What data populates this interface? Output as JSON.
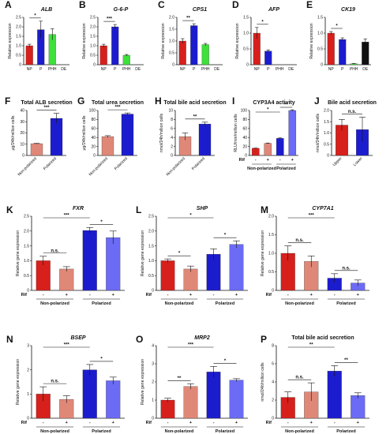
{
  "colors": {
    "red": "#d7201c",
    "blue": "#1c1ccf",
    "green": "#3ee03a",
    "black": "#111111",
    "pink": "#f2a0a8",
    "salmon": "#e08878",
    "cornflower": "#6b6bf5",
    "lightblue": "#a8b4f0",
    "highlight": "#f7b6c2"
  },
  "chart_data": [
    {
      "panel": "A",
      "type": "bar",
      "title": "ALB",
      "ylabel": "Relative expression",
      "ylim": [
        0,
        2.5
      ],
      "yticks": [
        "0",
        "0.5",
        "1.0",
        "1.5",
        "2.0",
        "2.5"
      ],
      "categories": [
        "NP",
        "P",
        "PHH",
        "DE"
      ],
      "values": [
        1.0,
        1.85,
        1.6,
        0.0
      ],
      "errors": [
        0.08,
        0.45,
        0.3,
        0
      ],
      "sig": [
        {
          "from": 0,
          "to": 1,
          "label": "*"
        }
      ]
    },
    {
      "panel": "B",
      "type": "bar",
      "title": "G-6-P",
      "ylabel": "Relative expression",
      "ylim": [
        0,
        2.5
      ],
      "yticks": [
        "0",
        "0.5",
        "1.0",
        "1.5",
        "2.0",
        "2.5"
      ],
      "categories": [
        "NP",
        "P",
        "PHH",
        "DE"
      ],
      "values": [
        1.0,
        2.0,
        0.5,
        0.0
      ],
      "errors": [
        0.08,
        0.12,
        0.04,
        0
      ],
      "sig": [
        {
          "from": 0,
          "to": 1,
          "label": "***"
        }
      ]
    },
    {
      "panel": "C",
      "type": "bar",
      "title": "CPS1",
      "ylabel": "Relative expression",
      "ylim": [
        0,
        2.0
      ],
      "yticks": [
        "0",
        "0.5",
        "1.0",
        "1.5",
        "2.0"
      ],
      "categories": [
        "NP",
        "P",
        "PHH",
        "DE"
      ],
      "values": [
        1.0,
        1.65,
        0.85,
        0.0
      ],
      "errors": [
        0.1,
        0.08,
        0.05,
        0
      ],
      "sig": [
        {
          "from": 0,
          "to": 1,
          "label": "**"
        }
      ]
    },
    {
      "panel": "D",
      "type": "bar",
      "title": "AFP",
      "ylabel": "Relative expression",
      "ylim": [
        0,
        1.5
      ],
      "yticks": [
        "0",
        "0.5",
        "1.0",
        "1.5"
      ],
      "categories": [
        "NP",
        "P",
        "PHH",
        "DE"
      ],
      "values": [
        1.0,
        0.43,
        0.0,
        0.0
      ],
      "errors": [
        0.18,
        0.04,
        0,
        0
      ],
      "sig": [
        {
          "from": 0,
          "to": 1,
          "label": "*"
        }
      ]
    },
    {
      "panel": "E",
      "type": "bar",
      "title": "CK19",
      "ylabel": "Relative expression",
      "ylim": [
        0,
        1.5
      ],
      "yticks": [
        "0",
        "0.5",
        "1.0",
        "1.5"
      ],
      "categories": [
        "NP",
        "P",
        "PHH",
        "DE"
      ],
      "values": [
        1.0,
        0.8,
        0.03,
        0.72
      ],
      "errors": [
        0.05,
        0.05,
        0.01,
        0.1
      ],
      "sig": [
        {
          "from": 0,
          "to": 1,
          "label": "*"
        }
      ]
    },
    {
      "panel": "F",
      "type": "bar",
      "title": "Total ALB secretion",
      "ylabel": "μg/24h/million cells",
      "ylim": [
        0,
        40
      ],
      "yticks": [
        "0",
        "10",
        "20",
        "30",
        "40"
      ],
      "categories": [
        "Non-polarized",
        "Polarized"
      ],
      "values": [
        10.5,
        33.0
      ],
      "errors": [
        0.3,
        4.5
      ],
      "sig": [
        {
          "from": 0,
          "to": 1,
          "label": "***"
        }
      ]
    },
    {
      "panel": "G",
      "type": "bar",
      "title": "Total urea secretion",
      "ylabel": "μg/24h/million cells",
      "ylim": [
        0,
        100
      ],
      "yticks": [
        "0",
        "20",
        "40",
        "60",
        "80",
        "100"
      ],
      "categories": [
        "Non-polarized",
        "Polarized"
      ],
      "values": [
        42.0,
        92.0
      ],
      "errors": [
        2.0,
        2.5
      ],
      "sig": [
        {
          "from": 0,
          "to": 1,
          "label": "***"
        }
      ]
    },
    {
      "panel": "H",
      "type": "bar",
      "title": "Total bile acid secretion",
      "ylabel": "nmol/24h/million cells",
      "ylim": [
        0,
        10
      ],
      "yticks": [
        "0",
        "2",
        "4",
        "6",
        "8",
        "10"
      ],
      "categories": [
        "Non-polarized",
        "Polarized"
      ],
      "values": [
        4.2,
        7.0
      ],
      "errors": [
        0.8,
        0.4
      ],
      "sig": [
        {
          "from": 0,
          "to": 1,
          "label": "**"
        }
      ]
    },
    {
      "panel": "I",
      "type": "bar",
      "title": "CYP3A4 activity",
      "ylabel": "RLU/min/million cells",
      "ylim": [
        0,
        100
      ],
      "yticks": [
        "0",
        "20",
        "40",
        "60",
        "80",
        "100"
      ],
      "categories": [
        "-",
        "+",
        "-",
        "+"
      ],
      "values": [
        16.0,
        27.0,
        38.0,
        100.0
      ],
      "errors": [
        0.5,
        0.7,
        1.0,
        1.5
      ],
      "groups": [
        "Non-polarized",
        "Polarized"
      ],
      "rif_label": "Rif",
      "sig": [
        {
          "from": 0,
          "to": 2,
          "label": "*"
        },
        {
          "from": 2,
          "to": 3,
          "label": "**"
        }
      ]
    },
    {
      "panel": "J",
      "type": "bar",
      "title": "Bile acid secretion",
      "ylabel": "nmol/24h/million cells",
      "ylim": [
        0,
        2.0
      ],
      "yticks": [
        "0",
        "0.5",
        "1.0",
        "1.5",
        "2.0"
      ],
      "categories": [
        "Upper",
        "Lower"
      ],
      "values": [
        1.35,
        1.15
      ],
      "errors": [
        0.25,
        0.55
      ],
      "sig": [
        {
          "from": 0,
          "to": 1,
          "label": "n.s."
        }
      ]
    },
    {
      "panel": "K",
      "type": "bar",
      "title": "FXR",
      "ylabel": "Relative gene expression",
      "ylim": [
        0,
        2.5
      ],
      "yticks": [
        "0",
        "0.5",
        "1.0",
        "1.5",
        "2.0",
        "2.5"
      ],
      "categories": [
        "-",
        "+",
        "-",
        "+"
      ],
      "values": [
        1.0,
        0.72,
        2.02,
        1.78
      ],
      "errors": [
        0.15,
        0.08,
        0.1,
        0.22
      ],
      "groups": [
        "Non-polarized",
        "Polarized"
      ],
      "rif_label": "Rif",
      "sig": [
        {
          "from": 0,
          "to": 1,
          "label": "n.s."
        },
        {
          "from": 0,
          "to": 2,
          "label": "***"
        },
        {
          "from": 2,
          "to": 3,
          "label": "*"
        }
      ]
    },
    {
      "panel": "L",
      "type": "bar",
      "title": "SHP",
      "ylabel": "Relative gene expression",
      "ylim": [
        0,
        2.5
      ],
      "yticks": [
        "0",
        "0.5",
        "1.0",
        "1.5",
        "2.0",
        "2.5"
      ],
      "categories": [
        "-",
        "+",
        "-",
        "+"
      ],
      "values": [
        1.0,
        0.72,
        1.22,
        1.55
      ],
      "errors": [
        0.06,
        0.1,
        0.18,
        0.12
      ],
      "groups": [
        "Non-polarized",
        "Polarized"
      ],
      "rif_label": "Rif",
      "sig": [
        {
          "from": 0,
          "to": 1,
          "label": "*"
        },
        {
          "from": 0,
          "to": 2,
          "label": "*"
        },
        {
          "from": 2,
          "to": 3,
          "label": "*"
        }
      ]
    },
    {
      "panel": "M",
      "type": "bar",
      "title": "CYP7A1",
      "ylabel": "Relative gene expression",
      "ylim": [
        0,
        2.0
      ],
      "yticks": [
        "0",
        "0.5",
        "1.0",
        "1.5",
        "2.0"
      ],
      "categories": [
        "-",
        "+",
        "-",
        "+"
      ],
      "values": [
        1.0,
        0.78,
        0.33,
        0.2
      ],
      "errors": [
        0.2,
        0.15,
        0.12,
        0.08
      ],
      "groups": [
        "Non-polarized",
        "Polarized"
      ],
      "rif_label": "Rif",
      "sig": [
        {
          "from": 0,
          "to": 1,
          "label": "n.s."
        },
        {
          "from": 0,
          "to": 2,
          "label": "***"
        },
        {
          "from": 2,
          "to": 3,
          "label": "n.s."
        }
      ]
    },
    {
      "panel": "N",
      "type": "bar",
      "title": "BSEP",
      "ylabel": "Relative gene expression",
      "ylim": [
        0,
        3
      ],
      "yticks": [
        "0",
        "1",
        "2",
        "3"
      ],
      "categories": [
        "-",
        "+",
        "-",
        "+"
      ],
      "values": [
        1.0,
        0.78,
        2.0,
        1.55
      ],
      "errors": [
        0.3,
        0.15,
        0.22,
        0.15
      ],
      "groups": [
        "Non-polarized",
        "Polarized"
      ],
      "rif_label": "Rif",
      "sig": [
        {
          "from": 0,
          "to": 1,
          "label": "n.s."
        },
        {
          "from": 0,
          "to": 2,
          "label": "***"
        },
        {
          "from": 2,
          "to": 3,
          "label": "*"
        }
      ]
    },
    {
      "panel": "O",
      "type": "bar",
      "title": "MRP2",
      "ylabel": "Relative gene expression",
      "ylim": [
        0,
        4
      ],
      "yticks": [
        "0",
        "1",
        "2",
        "3",
        "4"
      ],
      "categories": [
        "-",
        "+",
        "-",
        "+"
      ],
      "values": [
        1.0,
        1.75,
        2.55,
        2.1
      ],
      "errors": [
        0.1,
        0.15,
        0.3,
        0.08
      ],
      "groups": [
        "Non-polarized",
        "Polarized"
      ],
      "rif_label": "Rif",
      "sig": [
        {
          "from": 0,
          "to": 1,
          "label": "**"
        },
        {
          "from": 0,
          "to": 2,
          "label": "***"
        },
        {
          "from": 2,
          "to": 3,
          "label": "*"
        }
      ]
    },
    {
      "panel": "P",
      "type": "bar",
      "title": "Total bile acid secretion",
      "ylabel": "nmol/24h/million cells",
      "ylim": [
        0,
        8
      ],
      "yticks": [
        "0",
        "2",
        "4",
        "6",
        "8"
      ],
      "categories": [
        "-",
        "+",
        "-",
        "+"
      ],
      "values": [
        2.3,
        2.9,
        5.2,
        2.5
      ],
      "errors": [
        0.6,
        1.0,
        0.6,
        0.3
      ],
      "groups": [
        "Non-polarized",
        "Polarized"
      ],
      "rif_label": "Rif",
      "sig": [
        {
          "from": 0,
          "to": 1,
          "label": "n.s."
        },
        {
          "from": 0,
          "to": 2,
          "label": "**"
        },
        {
          "from": 2,
          "to": 3,
          "label": "**"
        }
      ]
    }
  ]
}
